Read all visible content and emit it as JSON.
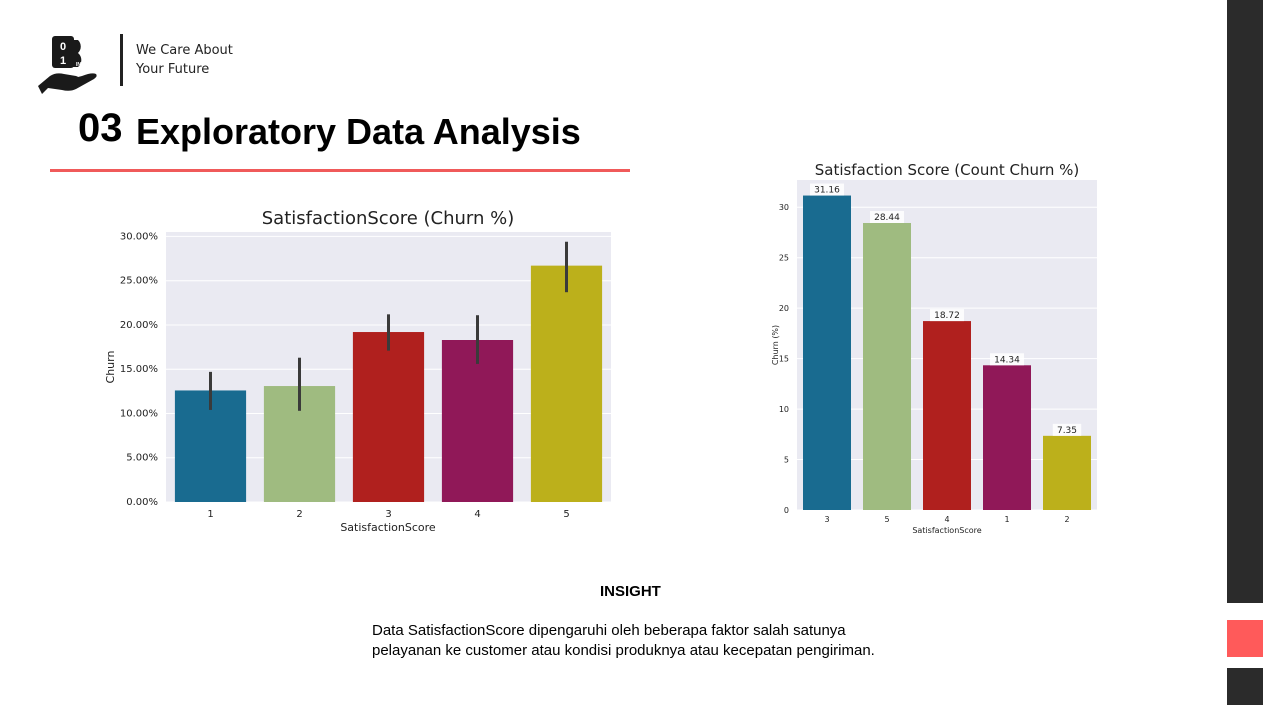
{
  "header": {
    "tagline_line1": "We Care About",
    "tagline_line2": "Your Future",
    "section_number": "03",
    "section_title": "Exploratory Data Analysis",
    "logo_text": "B",
    "logo_digits": [
      "0",
      "1"
    ],
    "logo_suffix": "IND"
  },
  "colors": {
    "accent_red": "#f05a5a",
    "sidebar_dark": "#2b2b2b",
    "sidebar_red": "#ff5a5a",
    "bar_palette": [
      "#196b90",
      "#9fbb80",
      "#b0201e",
      "#901858",
      "#bcb01b"
    ]
  },
  "chart_data": [
    {
      "type": "bar",
      "title": "SatisfactionScore (Churn %)",
      "xlabel": "SatisfactionScore",
      "ylabel": "Churn",
      "categories": [
        "1",
        "2",
        "3",
        "4",
        "5"
      ],
      "values": [
        12.6,
        13.1,
        19.2,
        18.3,
        26.7
      ],
      "error_low": [
        10.4,
        10.3,
        17.1,
        15.6,
        23.7
      ],
      "error_high": [
        14.7,
        16.3,
        21.2,
        21.1,
        29.4
      ],
      "ylim": [
        0,
        30.5
      ],
      "yticks": [
        0,
        5,
        10,
        15,
        20,
        25,
        30
      ],
      "ytick_labels": [
        "0.00%",
        "5.00%",
        "10.00%",
        "15.00%",
        "20.00%",
        "25.00%",
        "30.00%"
      ],
      "colors": [
        "#196b90",
        "#9fbb80",
        "#b0201e",
        "#901858",
        "#bcb01b"
      ],
      "grid": true
    },
    {
      "type": "bar",
      "title": "Satisfaction Score (Count Churn %)",
      "xlabel": "SatisfactionScore",
      "ylabel": "Churn (%)",
      "categories": [
        "3",
        "5",
        "4",
        "1",
        "2"
      ],
      "values": [
        31.16,
        28.44,
        18.72,
        14.34,
        7.35
      ],
      "data_labels": [
        "31.16",
        "28.44",
        "18.72",
        "14.34",
        "7.35"
      ],
      "ylim": [
        0,
        32.7
      ],
      "yticks": [
        0,
        5,
        10,
        15,
        20,
        25,
        30
      ],
      "ytick_labels": [
        "0",
        "5",
        "10",
        "15",
        "20",
        "25",
        "30"
      ],
      "colors": [
        "#196b90",
        "#9fbb80",
        "#b0201e",
        "#901858",
        "#bcb01b"
      ],
      "grid": true
    }
  ],
  "insight": {
    "title": "INSIGHT",
    "body": "Data SatisfactionScore dipengaruhi oleh beberapa faktor salah satunya pelayanan ke customer atau kondisi produknya atau kecepatan pengiriman."
  }
}
